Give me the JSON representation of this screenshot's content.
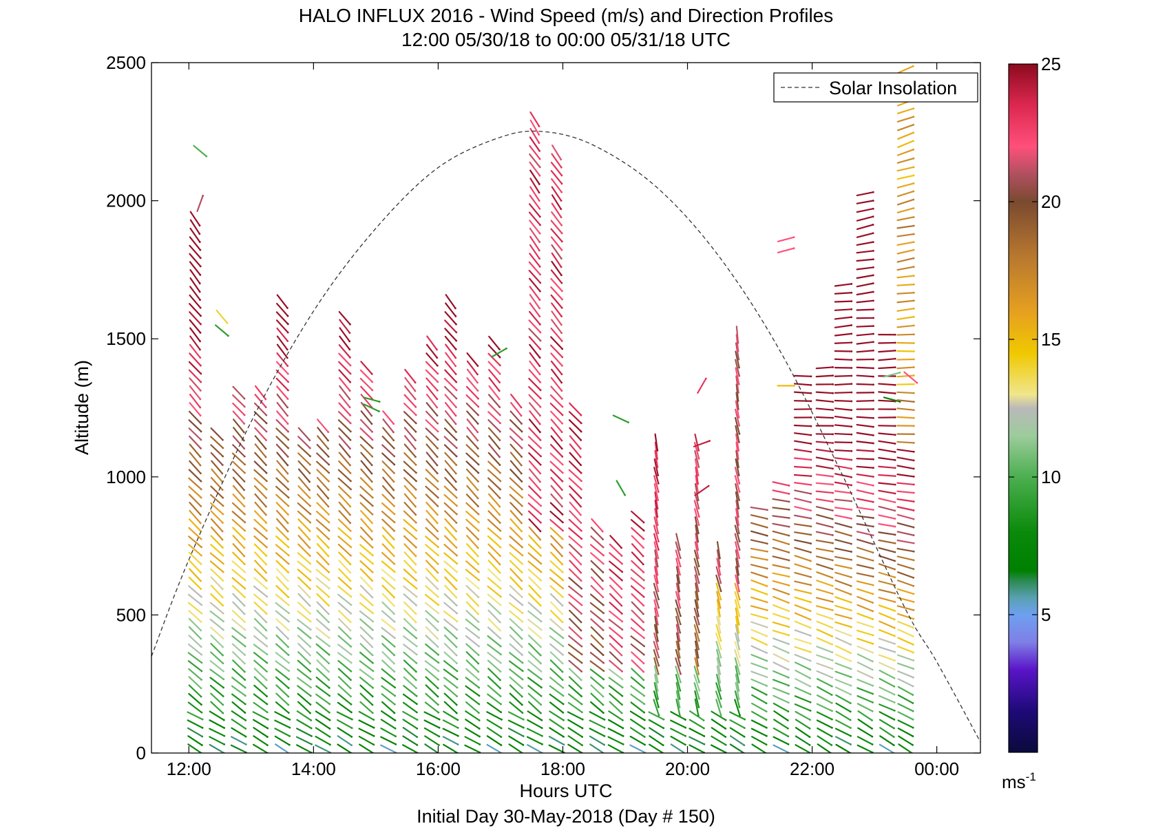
{
  "chart_data": {
    "type": "quiver",
    "title": "HALO INFLUX 2016 - Wind Speed (m/s) and Direction Profiles",
    "subtitle": "12:00 05/30/18 to 00:00 05/31/18  UTC",
    "xlabel": "Hours UTC",
    "xlabel2": "Initial Day 30-May-2018 (Day # 150)",
    "ylabel": "Altitude (m)",
    "xlim": [
      11.4,
      24.7
    ],
    "ylim": [
      0,
      2500
    ],
    "x_ticks": [
      12,
      14,
      16,
      18,
      20,
      22,
      24
    ],
    "x_tick_labels": [
      "12:00",
      "14:00",
      "16:00",
      "18:00",
      "20:00",
      "22:00",
      "00:00"
    ],
    "y_ticks": [
      0,
      500,
      1000,
      1500,
      2000,
      2500
    ],
    "y_tick_labels": [
      "0",
      "500",
      "1000",
      "1500",
      "2000",
      "2500"
    ],
    "legend": {
      "position": "top-right",
      "entries": [
        "Solar Insolation"
      ]
    },
    "solar_insolation": {
      "style": "dashed",
      "color": "#333333",
      "x": [
        11.4,
        12.0,
        13.0,
        14.0,
        15.0,
        16.0,
        17.0,
        17.7,
        18.5,
        19.5,
        20.5,
        21.5,
        22.5,
        23.5,
        24.0,
        24.7
      ],
      "y": [
        350,
        700,
        1200,
        1600,
        1900,
        2120,
        2230,
        2250,
        2200,
        2050,
        1800,
        1450,
        1000,
        520,
        330,
        40
      ]
    },
    "colorbar": {
      "label": "ms-1",
      "label_main": "ms",
      "label_sup": "-1",
      "range": [
        0,
        25
      ],
      "ticks": [
        5,
        10,
        15,
        20,
        25
      ],
      "tick_labels": [
        "5",
        "10",
        "15",
        "20",
        "25"
      ],
      "colors": [
        {
          "v": 0,
          "c": "#0a0a3c"
        },
        {
          "v": 1.5,
          "c": "#1e0a78"
        },
        {
          "v": 3,
          "c": "#5a14c8"
        },
        {
          "v": 4,
          "c": "#7f7fe6"
        },
        {
          "v": 5,
          "c": "#6ea0f0"
        },
        {
          "v": 5.6,
          "c": "#5aa0b4"
        },
        {
          "v": 6.2,
          "c": "#2e8b57"
        },
        {
          "v": 6.6,
          "c": "#008000"
        },
        {
          "v": 8,
          "c": "#0a8a0a"
        },
        {
          "v": 10,
          "c": "#4caf50"
        },
        {
          "v": 11.5,
          "c": "#9ccc9c"
        },
        {
          "v": 12.5,
          "c": "#b9b9b9"
        },
        {
          "v": 13,
          "c": "#f0e68c"
        },
        {
          "v": 14.5,
          "c": "#f0c800"
        },
        {
          "v": 16,
          "c": "#e6a020"
        },
        {
          "v": 18,
          "c": "#b8782f"
        },
        {
          "v": 20,
          "c": "#7a4a30"
        },
        {
          "v": 21,
          "c": "#b05060"
        },
        {
          "v": 22,
          "c": "#ff507a"
        },
        {
          "v": 23.5,
          "c": "#dc2850"
        },
        {
          "v": 25,
          "c": "#8c0a1e"
        }
      ]
    },
    "wind_profiles": {
      "description": "Wind barbs in 20-minute columns from 12:00 to 23:40 UTC; altitude in m, speed in m/s, direction as arrow angle in degrees (0 = east, 90 = up).",
      "columns": [
        {
          "t": 12.1,
          "top": 1960,
          "extra": [
            [
              2180,
              10,
              -40
            ],
            [
              1990,
              21,
              70
            ]
          ]
        },
        {
          "t": 12.45,
          "top": 1170,
          "extra": [
            [
              1580,
              14,
              -50
            ],
            [
              1530,
              9,
              -40
            ]
          ]
        },
        {
          "t": 12.8,
          "top": 1330
        },
        {
          "t": 13.15,
          "top": 1330
        },
        {
          "t": 13.5,
          "top": 1660
        },
        {
          "t": 13.85,
          "top": 1160
        },
        {
          "t": 14.15,
          "top": 1200
        },
        {
          "t": 14.5,
          "top": 1580
        },
        {
          "t": 14.85,
          "top": 1410,
          "extra": [
            [
              1280,
              9,
              -15
            ],
            [
              1250,
              9,
              -25
            ]
          ]
        },
        {
          "t": 15.2,
          "top": 1240
        },
        {
          "t": 15.55,
          "top": 1370
        },
        {
          "t": 15.9,
          "top": 1500
        },
        {
          "t": 16.2,
          "top": 1660
        },
        {
          "t": 16.55,
          "top": 1450
        },
        {
          "t": 16.9,
          "top": 1490,
          "extra": [
            [
              1450,
              9,
              30
            ]
          ]
        },
        {
          "t": 17.25,
          "top": 1290
        },
        {
          "t": 17.55,
          "top": 2320
        },
        {
          "t": 17.9,
          "top": 2180
        },
        {
          "t": 18.2,
          "top": 1250
        },
        {
          "t": 18.55,
          "top": 840
        },
        {
          "t": 18.85,
          "top": 790,
          "extra": [
            [
              1210,
              9,
              -25
            ],
            [
              960,
              9,
              -60
            ]
          ]
        },
        {
          "t": 19.2,
          "top": 870
        },
        {
          "t": 19.5,
          "top": 1130
        },
        {
          "t": 19.85,
          "top": 790
        },
        {
          "t": 20.15,
          "top": 1130,
          "extra": [
            [
              1330,
              23,
              60
            ],
            [
              1120,
              24,
              20
            ],
            [
              950,
              24,
              35
            ]
          ]
        },
        {
          "t": 20.5,
          "top": 740
        },
        {
          "t": 20.8,
          "top": 1530
        },
        {
          "t": 21.15,
          "top": 910
        },
        {
          "t": 21.5,
          "top": 1000,
          "extra": [
            [
              1860,
              22,
              15
            ],
            [
              1820,
              22,
              15
            ],
            [
              1330,
              15,
              0
            ]
          ]
        },
        {
          "t": 21.85,
          "top": 1380
        },
        {
          "t": 22.2,
          "top": 1410
        },
        {
          "t": 22.5,
          "top": 1700
        },
        {
          "t": 22.85,
          "top": 2030
        },
        {
          "t": 23.2,
          "top": 1530,
          "extra": [
            [
              1370,
              11,
              15
            ],
            [
              1280,
              7,
              -15
            ]
          ]
        },
        {
          "t": 23.5,
          "top": 2500,
          "extra": [
            [
              1360,
              22,
              -40
            ]
          ]
        }
      ]
    }
  }
}
